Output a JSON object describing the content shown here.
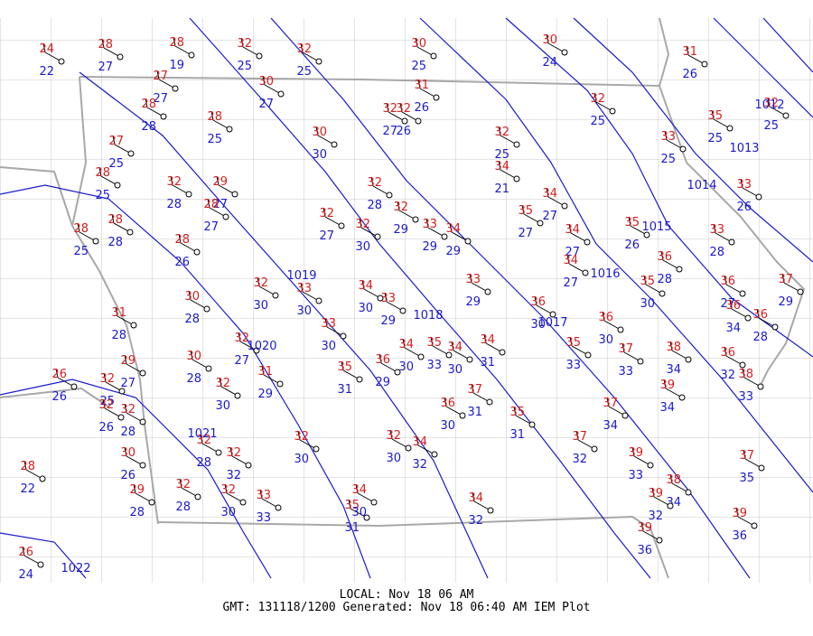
{
  "stations": [
    {
      "temp": 24,
      "dewpoint": 22
    },
    {
      "temp": 28,
      "dewpoint": 27
    },
    {
      "temp": 28,
      "dewpoint": 19
    },
    {
      "temp": 32,
      "dewpoint": 25
    },
    {
      "temp": 32,
      "dewpoint": 25
    },
    {
      "temp": 30,
      "dewpoint": 25
    },
    {
      "temp": 30,
      "dewpoint": 24
    },
    {
      "temp": 31,
      "dewpoint": 26
    },
    {
      "temp": 27,
      "dewpoint": 27
    },
    {
      "temp": 30,
      "dewpoint": 27
    },
    {
      "temp": 31,
      "dewpoint": 26
    },
    {
      "temp": 32,
      "dewpoint": 25
    },
    {
      "temp": 28,
      "dewpoint": 28
    },
    {
      "temp": 28,
      "dewpoint": 25
    },
    {
      "temp": 32,
      "dewpoint": 27
    },
    {
      "temp": 32,
      "dewpoint": 26
    },
    {
      "temp": 32,
      "dewpoint": 25
    },
    {
      "temp": 35,
      "dewpoint": 25
    },
    {
      "temp": 27,
      "dewpoint": 25
    },
    {
      "temp": 30,
      "dewpoint": 30
    },
    {
      "temp": 32,
      "dewpoint": 25
    },
    {
      "temp": 33,
      "dewpoint": 25
    },
    {
      "temp": 28,
      "dewpoint": 25
    },
    {
      "temp": 32,
      "dewpoint": 28
    },
    {
      "temp": 29,
      "dewpoint": 27
    },
    {
      "temp": 28,
      "dewpoint": 27
    },
    {
      "temp": 32,
      "dewpoint": 28
    },
    {
      "temp": 34,
      "dewpoint": 21
    },
    {
      "temp": 33,
      "dewpoint": 26
    },
    {
      "temp": 28,
      "dewpoint": 28
    },
    {
      "temp": 28,
      "dewpoint": 25
    },
    {
      "temp": 32,
      "dewpoint": 27
    },
    {
      "temp": 32,
      "dewpoint": 30
    },
    {
      "temp": 32,
      "dewpoint": 29
    },
    {
      "temp": 33,
      "dewpoint": 29
    },
    {
      "temp": 34,
      "dewpoint": 29
    },
    {
      "temp": 35,
      "dewpoint": 27
    },
    {
      "temp": 34,
      "dewpoint": 27
    },
    {
      "temp": 34,
      "dewpoint": 27
    },
    {
      "temp": 35,
      "dewpoint": 26
    },
    {
      "temp": 33,
      "dewpoint": 28
    },
    {
      "temp": 28,
      "dewpoint": 26
    },
    {
      "temp": 34,
      "dewpoint": 27
    },
    {
      "temp": 36,
      "dewpoint": 28
    },
    {
      "temp": 35,
      "dewpoint": 30
    },
    {
      "temp": 36,
      "dewpoint": 27
    },
    {
      "temp": 37,
      "dewpoint": 29
    },
    {
      "temp": 30,
      "dewpoint": 28
    },
    {
      "temp": 32,
      "dewpoint": 30
    },
    {
      "temp": 33,
      "dewpoint": 30
    },
    {
      "temp": 34,
      "dewpoint": 30
    },
    {
      "temp": 33,
      "dewpoint": 29
    },
    {
      "temp": 33,
      "dewpoint": 29
    },
    {
      "temp": 36,
      "dewpoint": 30
    },
    {
      "temp": 31,
      "dewpoint": 28
    },
    {
      "temp": 33,
      "dewpoint": 30
    },
    {
      "temp": 36,
      "dewpoint": 30
    },
    {
      "temp": 36,
      "dewpoint": 34
    },
    {
      "temp": 36,
      "dewpoint": 28
    },
    {
      "temp": 32,
      "dewpoint": 27
    },
    {
      "temp": 30,
      "dewpoint": 28
    },
    {
      "temp": 34,
      "dewpoint": 30
    },
    {
      "temp": 35,
      "dewpoint": 33
    },
    {
      "temp": 34,
      "dewpoint": 30
    },
    {
      "temp": 34,
      "dewpoint": 31
    },
    {
      "temp": 35,
      "dewpoint": 33
    },
    {
      "temp": 37,
      "dewpoint": 33
    },
    {
      "temp": 38,
      "dewpoint": 34
    },
    {
      "temp": 36,
      "dewpoint": 32
    },
    {
      "temp": 29,
      "dewpoint": 27
    },
    {
      "temp": 31,
      "dewpoint": 29
    },
    {
      "temp": 35,
      "dewpoint": 31
    },
    {
      "temp": 36,
      "dewpoint": 29
    },
    {
      "temp": 32,
      "dewpoint": 25
    },
    {
      "temp": 26,
      "dewpoint": 26
    },
    {
      "temp": 38,
      "dewpoint": 33
    },
    {
      "temp": 32,
      "dewpoint": 28
    },
    {
      "temp": 32,
      "dewpoint": 30
    },
    {
      "temp": 36,
      "dewpoint": 30
    },
    {
      "temp": 37,
      "dewpoint": 31
    },
    {
      "temp": 35,
      "dewpoint": 31
    },
    {
      "temp": 37,
      "dewpoint": 34
    },
    {
      "temp": 39,
      "dewpoint": 34
    },
    {
      "temp": 32,
      "dewpoint": 26
    },
    {
      "temp": 30,
      "dewpoint": 26
    },
    {
      "temp": 32,
      "dewpoint": 28
    },
    {
      "temp": 32,
      "dewpoint": 32
    },
    {
      "temp": 32,
      "dewpoint": 30
    },
    {
      "temp": 32,
      "dewpoint": 30
    },
    {
      "temp": 34,
      "dewpoint": 32
    },
    {
      "temp": 37,
      "dewpoint": 32
    },
    {
      "temp": 39,
      "dewpoint": 33
    },
    {
      "temp": 28,
      "dewpoint": 22
    },
    {
      "temp": 32,
      "dewpoint": 28
    },
    {
      "temp": 32,
      "dewpoint": 30
    },
    {
      "temp": 33,
      "dewpoint": 33
    },
    {
      "temp": 29,
      "dewpoint": 28
    },
    {
      "temp": 35,
      "dewpoint": 31
    },
    {
      "temp": 34,
      "dewpoint": 30
    },
    {
      "temp": 34,
      "dewpoint": 32
    },
    {
      "temp": 38,
      "dewpoint": 34
    },
    {
      "temp": 39,
      "dewpoint": 32
    },
    {
      "temp": 37,
      "dewpoint": 35
    },
    {
      "temp": 39,
      "dewpoint": 36
    },
    {
      "temp": 39,
      "dewpoint": 36
    },
    {
      "temp": 26,
      "dewpoint": 24
    }
  ],
  "isobars": [
    "1012",
    "1013",
    "1014",
    "1015",
    "1016",
    "1017",
    "1018",
    "1019",
    "1020",
    "1021",
    "1022"
  ],
  "footer": {
    "local": "LOCAL: Nov 18 06 AM",
    "gmt": "GMT: 131118/1200 Generated: Nov 18 06:40 AM IEM Plot"
  }
}
